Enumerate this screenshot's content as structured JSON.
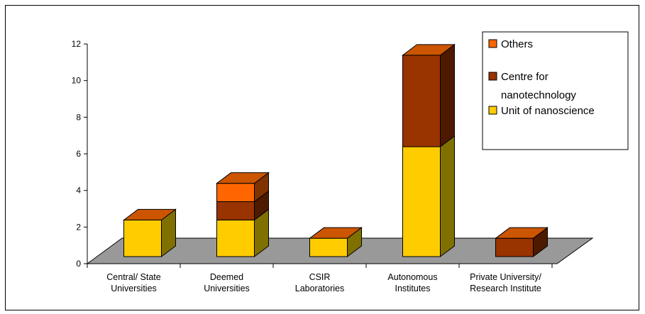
{
  "chart_data": {
    "type": "bar",
    "stacked": true,
    "three_d": true,
    "categories": [
      [
        "Central/ State",
        "Universities"
      ],
      [
        "Deemed",
        "Universities"
      ],
      [
        "CSIR",
        "Laboratories"
      ],
      [
        "Autonomous",
        "Institutes"
      ],
      [
        "Private University/",
        "Research Institute"
      ]
    ],
    "series": [
      {
        "name": "Unit of nanoscience",
        "color": "#FFCC00",
        "side_color": "#807000",
        "values": [
          2,
          2,
          1,
          6,
          0
        ]
      },
      {
        "name": "Centre for nanotechnology",
        "color": "#993300",
        "side_color": "#4D1A00",
        "values": [
          0,
          1,
          0,
          5,
          1
        ]
      },
      {
        "name": "Others",
        "color": "#FF6600",
        "side_color": "#803300",
        "values": [
          0,
          1,
          0,
          0,
          0
        ]
      }
    ],
    "top_color": "#CC5500",
    "floor_color": "#999999",
    "legend_order": [
      "Others",
      "Centre for nanotechnology",
      "Unit of nanoscience"
    ],
    "legend_labels": [
      [
        "Others"
      ],
      [
        "Centre for",
        "nanotechnology"
      ],
      [
        "Unit of nanoscience"
      ]
    ],
    "yticks": [
      "0",
      "2",
      "4",
      "6",
      "8",
      "10",
      "12"
    ],
    "ylim": [
      0,
      12
    ],
    "legend_position": "top-right",
    "title": "",
    "xlabel": "",
    "ylabel": ""
  }
}
